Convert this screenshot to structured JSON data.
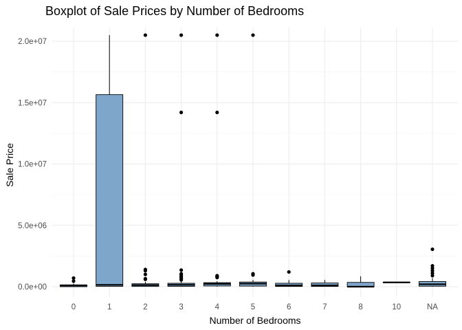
{
  "chart_data": {
    "type": "boxplot",
    "title": "Boxplot of Sale Prices by Number of Bedrooms",
    "xlabel": "Number of Bedrooms",
    "ylabel": "Sale Price",
    "ylim": [
      -300000,
      21000000
    ],
    "yticks": [
      0,
      5000000,
      10000000,
      15000000,
      20000000
    ],
    "ytick_labels": [
      "0.0e+00",
      "5.0e+06",
      "1.0e+07",
      "1.5e+07",
      "2.0e+07"
    ],
    "grid": true,
    "box_color": "#7ea6cb",
    "categories": [
      "0",
      "1",
      "2",
      "3",
      "4",
      "5",
      "6",
      "7",
      "8",
      "10",
      "NA"
    ],
    "boxes": [
      {
        "category": "0",
        "min": 0,
        "q1": 0,
        "median": 100000,
        "q3": 150000,
        "max": 250000,
        "outliers": [
          450000,
          700000
        ]
      },
      {
        "category": "1",
        "min": 0,
        "q1": 30000,
        "median": 150000,
        "q3": 15650000,
        "max": 20500000,
        "outliers": []
      },
      {
        "category": "2",
        "min": 0,
        "q1": 20000,
        "median": 130000,
        "q3": 240000,
        "max": 400000,
        "outliers": [
          600000,
          650000,
          1000000,
          1300000,
          1400000,
          20500000
        ]
      },
      {
        "category": "3",
        "min": 0,
        "q1": 30000,
        "median": 150000,
        "q3": 280000,
        "max": 450000,
        "outliers": [
          550000,
          650000,
          750000,
          850000,
          950000,
          1050000,
          1350000,
          14200000,
          20500000
        ]
      },
      {
        "category": "4",
        "min": 0,
        "q1": 60000,
        "median": 230000,
        "q3": 330000,
        "max": 450000,
        "outliers": [
          750000,
          800000,
          850000,
          900000,
          14200000,
          20500000
        ]
      },
      {
        "category": "5",
        "min": 0,
        "q1": 50000,
        "median": 250000,
        "q3": 380000,
        "max": 550000,
        "outliers": [
          950000,
          1050000,
          20500000
        ]
      },
      {
        "category": "6",
        "min": 0,
        "q1": 20000,
        "median": 100000,
        "q3": 280000,
        "max": 550000,
        "outliers": [
          1200000
        ]
      },
      {
        "category": "7",
        "min": 0,
        "q1": 20000,
        "median": 100000,
        "q3": 300000,
        "max": 550000,
        "outliers": []
      },
      {
        "category": "8",
        "min": 0,
        "q1": 0,
        "median": 0,
        "q3": 350000,
        "max": 850000,
        "outliers": []
      },
      {
        "category": "10",
        "min": 330000,
        "q1": 330000,
        "median": 350000,
        "q3": 370000,
        "max": 370000,
        "outliers": []
      },
      {
        "category": "NA",
        "min": 0,
        "q1": 40000,
        "median": 200000,
        "q3": 420000,
        "max": 700000,
        "outliers": [
          900000,
          1100000,
          1300000,
          1500000,
          1700000,
          3050000
        ]
      }
    ]
  }
}
